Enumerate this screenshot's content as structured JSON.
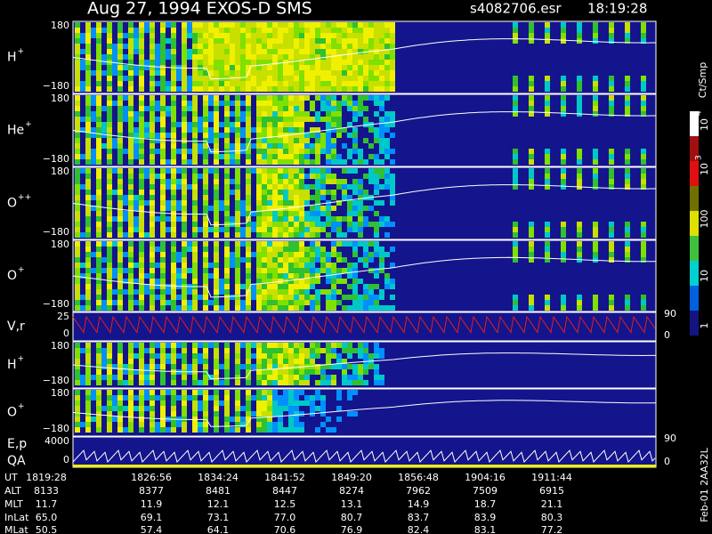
{
  "header": {
    "title": "Aug 27, 1994   EXOS-D SMS",
    "file": "s4082706.esr",
    "time": "18:19:28"
  },
  "panels": [
    {
      "label": "H",
      "sup": "+",
      "top": "180",
      "bottom": "−180"
    },
    {
      "label": "He",
      "sup": "+",
      "top": "180",
      "bottom": "−180"
    },
    {
      "label": "O",
      "sup": "++",
      "top": "180",
      "bottom": "−180"
    },
    {
      "label": "O",
      "sup": "+",
      "top": "180",
      "bottom": "−180"
    },
    {
      "label": "V,r",
      "top": "25",
      "bottom": "0",
      "right_top": "90",
      "right_bottom": "0"
    },
    {
      "label": "H",
      "sup": "+",
      "top": "180",
      "bottom": "−180"
    },
    {
      "label": "O",
      "sup": "+",
      "top": "180",
      "bottom": "−180"
    },
    {
      "label": "E,p",
      "label2": "QA",
      "top": "4000",
      "bottom": "0",
      "right_top": "90",
      "right_bottom": "0"
    }
  ],
  "colorbar": {
    "unit": "Ct/Smp",
    "ticks": [
      {
        "base": "10",
        "exp": "4"
      },
      {
        "base": "10",
        "exp": "3"
      },
      {
        "base": "100"
      },
      {
        "base": "10"
      },
      {
        "base": "1"
      }
    ]
  },
  "table": {
    "rows": [
      [
        "UT",
        "1819:28",
        "1826:56",
        "1834:24",
        "1841:52",
        "1849:20",
        "1856:48",
        "1904:16",
        "1911:44"
      ],
      [
        "ALT",
        "8133",
        "8377",
        "8481",
        "8447",
        "8274",
        "7962",
        "7509",
        "6915"
      ],
      [
        "MLT",
        "11.7",
        "11.9",
        "12.1",
        "12.5",
        "13.1",
        "14.9",
        "18.7",
        "21.1"
      ],
      [
        "InLat",
        "65.0",
        "69.1",
        "73.1",
        "77.0",
        "80.7",
        "83.7",
        "83.9",
        "80.3"
      ],
      [
        "MLat",
        "50.5",
        "57.4",
        "64.1",
        "70.6",
        "76.9",
        "82.4",
        "83.1",
        "77.2"
      ]
    ]
  },
  "footer": "Feb-01 2AA32L"
}
